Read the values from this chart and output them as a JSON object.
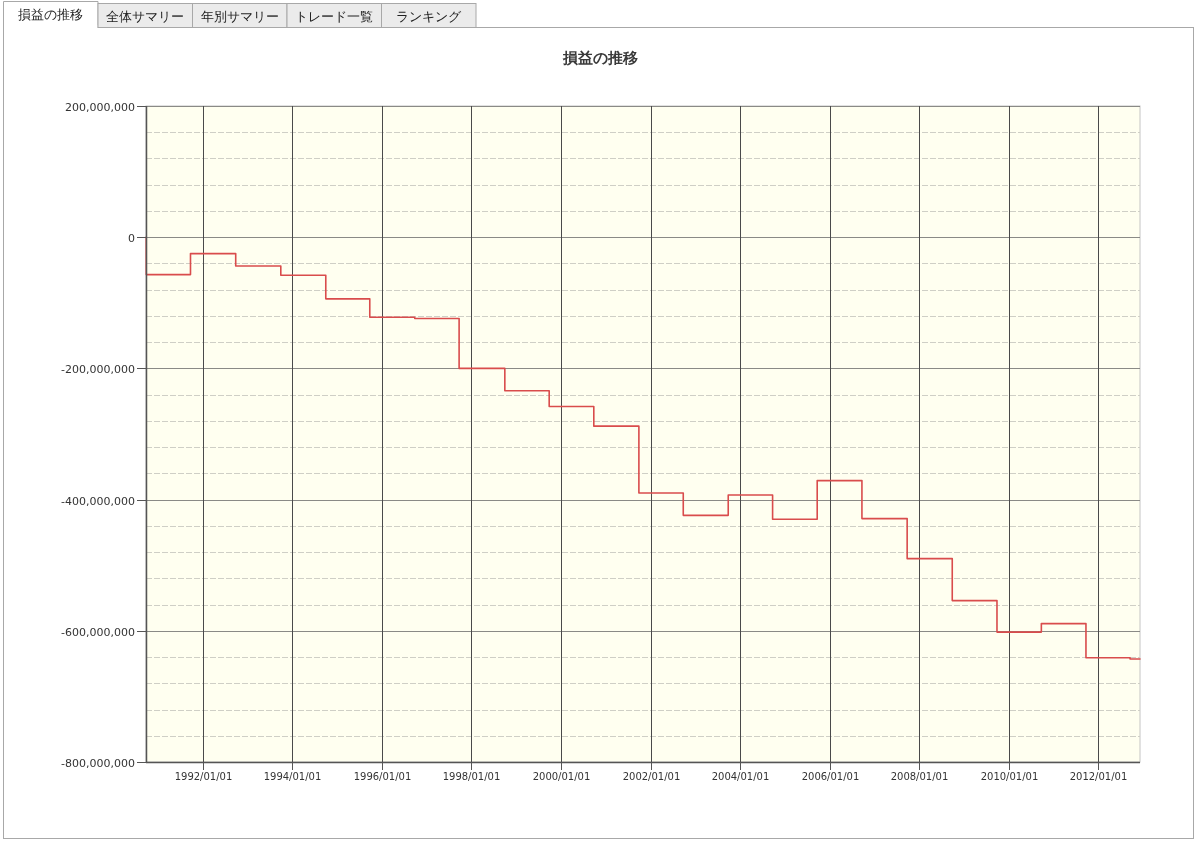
{
  "chart_data": {
    "type": "step",
    "title": "損益の推移",
    "annotations": [
      "損益の推移",
      "全体サマリー",
      "年別サマリー",
      "トレード一覧",
      "ランキング"
    ],
    "x": [
      "1990-09-24",
      "1990-09-26",
      "1991-09-22",
      "1992-09-25",
      "1993-09-28",
      "1994-09-30",
      "1995-09-24",
      "1996-09-25",
      "1997-09-22",
      "1998-09-30",
      "1999-09-27",
      "2000-09-25",
      "2001-09-28",
      "2002-09-25",
      "2003-09-27",
      "2004-09-23",
      "2005-09-22",
      "2006-09-22",
      "2007-09-26",
      "2008-09-28",
      "2009-09-28",
      "2010-09-25",
      "2011-09-24",
      "2012-09-18",
      "2012-12-08"
    ],
    "values": [
      0,
      -57000000,
      -25000000,
      -44000000,
      -58000000,
      -94000000,
      -122000000,
      -124000000,
      -200000000,
      -234000000,
      -258000000,
      -288000000,
      -390000000,
      -424000000,
      -393000000,
      -430000000,
      -371000000,
      -429000000,
      -490000000,
      -554000000,
      -602000000,
      -589000000,
      -641000000,
      -643000000,
      -643000000
    ],
    "color": "#d94c4c",
    "line_style": "solid",
    "xlim": [
      "1990-09-24",
      "2012-12-08"
    ],
    "xticks": [
      {
        "value": "1992-01-01",
        "label": "1992/01/01"
      },
      {
        "value": "1994-01-01",
        "label": "1994/01/01"
      },
      {
        "value": "1996-01-01",
        "label": "1996/01/01"
      },
      {
        "value": "1998-01-01",
        "label": "1998/01/01"
      },
      {
        "value": "2000-01-01",
        "label": "2000/01/01"
      },
      {
        "value": "2002-01-01",
        "label": "2002/01/01"
      },
      {
        "value": "2004-01-01",
        "label": "2004/01/01"
      },
      {
        "value": "2006-01-01",
        "label": "2006/01/01"
      },
      {
        "value": "2008-01-01",
        "label": "2008/01/01"
      },
      {
        "value": "2010-01-01",
        "label": "2010/01/01"
      },
      {
        "value": "2012-01-01",
        "label": "2012/01/01"
      }
    ],
    "ylim": [
      -800000000,
      200000000
    ],
    "yticks": [
      {
        "value": 200000000,
        "label": "200,000,000"
      },
      {
        "value": 160000000,
        "label": null
      },
      {
        "value": 120000000,
        "label": null
      },
      {
        "value": 80000000,
        "label": null
      },
      {
        "value": 40000000,
        "label": null
      },
      0,
      {
        "value": -40000000,
        "label": null
      },
      {
        "value": -80000000,
        "label": null
      },
      {
        "value": -120000000,
        "label": null
      },
      {
        "value": -160000000,
        "label": null
      },
      {
        "value": -200000000,
        "label": "-200,000,000"
      },
      {
        "value": -240000000,
        "label": null
      },
      {
        "value": -280000000,
        "label": null
      },
      {
        "value": -320000000,
        "label": null
      },
      {
        "value": -360000000,
        "label": null
      },
      {
        "value": -400000000,
        "label": "-400,000,000"
      },
      {
        "value": -440000000,
        "label": null
      },
      {
        "value": -480000000,
        "label": null
      },
      {
        "value": -520000000,
        "label": null
      },
      {
        "value": -560000000,
        "label": null
      },
      {
        "value": -600000000,
        "label": "-600,000,000"
      },
      {
        "value": -640000000,
        "label": null
      },
      {
        "value": -680000000,
        "label": null
      },
      {
        "value": -720000000,
        "label": null
      },
      {
        "value": -760000000,
        "label": null
      },
      {
        "value": -800000000,
        "label": "-800,000,000"
      }
    ],
    "grid": true
  }
}
